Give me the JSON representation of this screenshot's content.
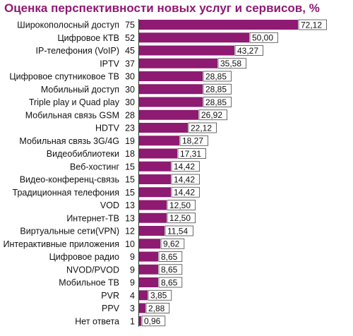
{
  "colors": {
    "title": "#8e1a72",
    "bar": "#8e1a72",
    "value_box_border": "#444444"
  },
  "chart_data": {
    "type": "bar",
    "orientation": "horizontal",
    "title": "Оценка перспективности новых услуг и сервисов, %",
    "grid": false,
    "categories": [
      "Широкополосный доступ",
      "Цифровое КТВ",
      "IP-телефония (VoIP)",
      "IPTV",
      "Цифровое спутниковое ТВ",
      "Мобильный доступ",
      "Triple play и Quad play",
      "Мобильная связь GSM",
      "HDTV",
      "Мобильная связь 3G/4G",
      "Видеобиблиотеки",
      "Веб-хостинг",
      "Видео-конференц-связь",
      "Традиционная телефония",
      "VOD",
      "Интернет-ТВ",
      "Виртуальные сети(VPN)",
      "Интерактивные приложения",
      "Цифровое радио",
      "NVOD/PVOD",
      "Мобильное ТВ",
      "PVR",
      "PPV",
      "Нет ответа"
    ],
    "counts": [
      "75",
      "52",
      "45",
      "37",
      "30",
      "30",
      "30",
      "28",
      "23",
      "19",
      "18",
      "15",
      "15",
      "15",
      "13",
      "13",
      "12",
      "10",
      "9",
      "9",
      "9",
      "4",
      "3",
      "1"
    ],
    "values": [
      72.12,
      50.0,
      43.27,
      35.58,
      28.85,
      28.85,
      28.85,
      26.92,
      22.12,
      18.27,
      17.31,
      14.42,
      14.42,
      14.42,
      12.5,
      12.5,
      11.54,
      9.62,
      8.65,
      8.65,
      8.65,
      3.85,
      2.88,
      0.96
    ],
    "value_labels": [
      "72,12",
      "50,00",
      "43,27",
      "35,58",
      "28,85",
      "28,85",
      "28,85",
      "26,92",
      "22,12",
      "18,27",
      "17,31",
      "14,42",
      "14,42",
      "14,42",
      "12,50",
      "12,50",
      "11,54",
      "9,62",
      "8,65",
      "8,65",
      "8,65",
      "3,85",
      "2,88",
      "0,96"
    ]
  }
}
